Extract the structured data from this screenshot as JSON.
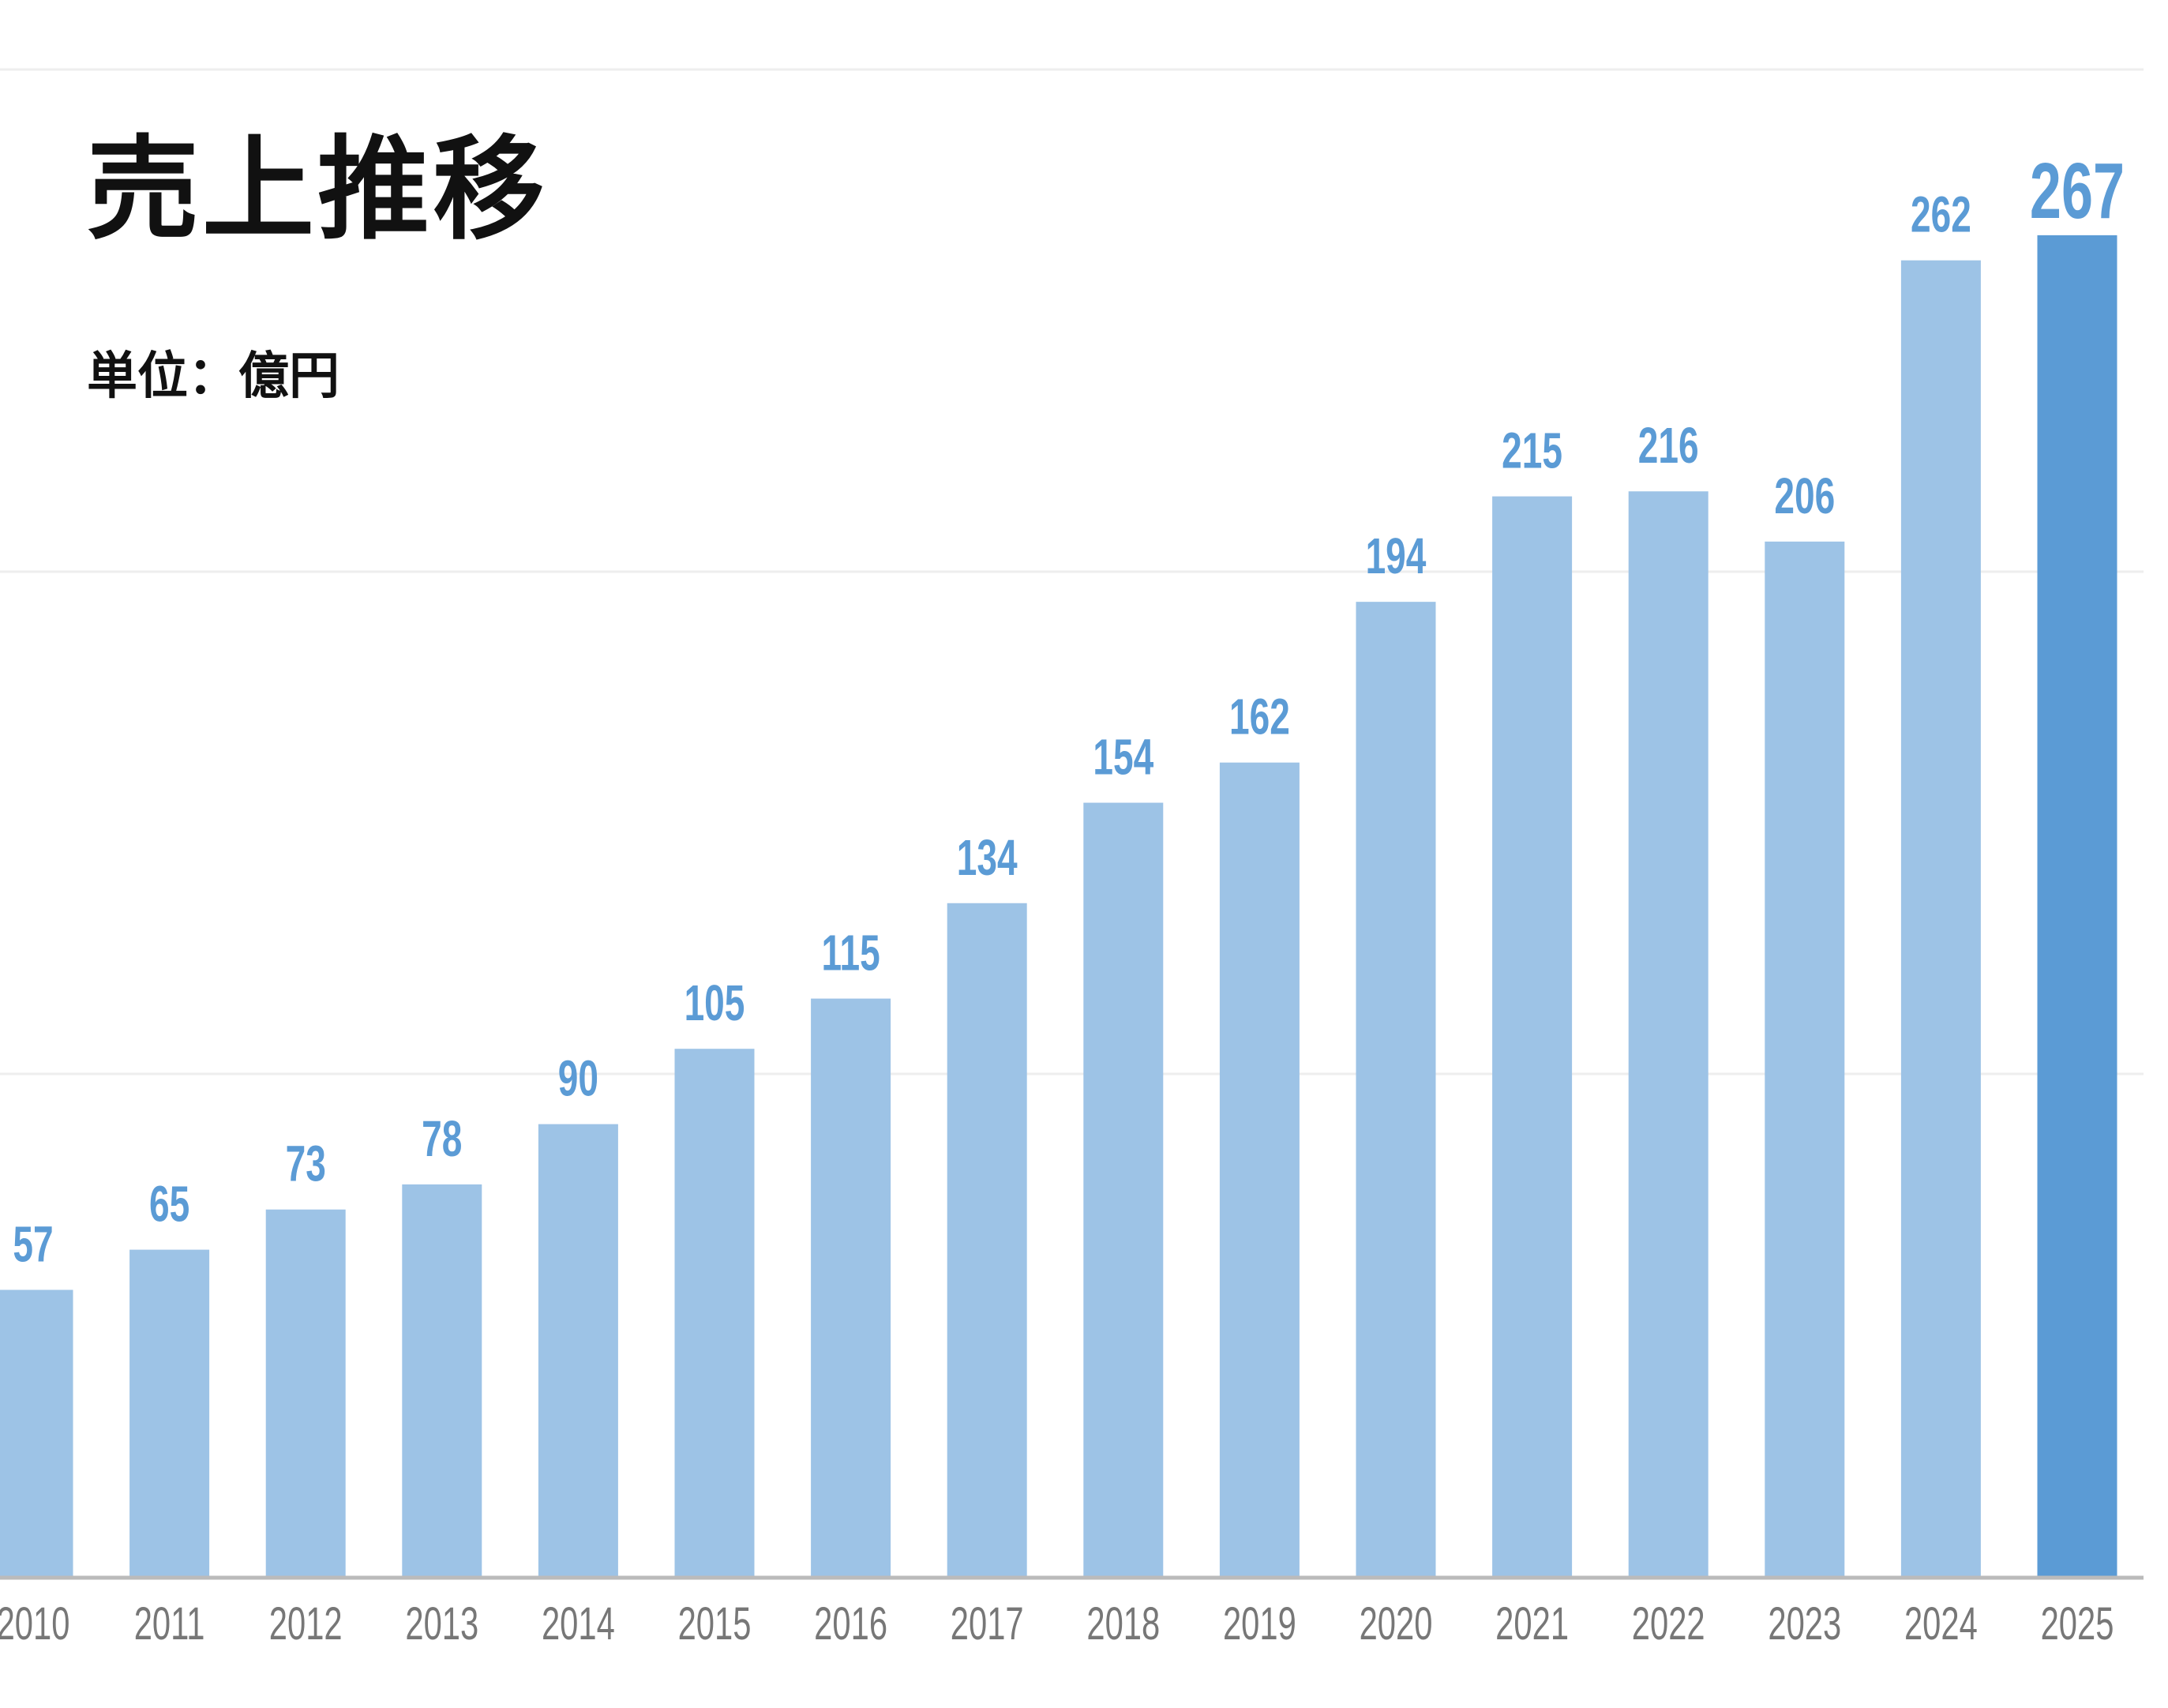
{
  "chart_data": {
    "type": "bar",
    "title": "売上推移",
    "unit_label": "単位：億円",
    "categories": [
      "2010",
      "2011",
      "2012",
      "2013",
      "2014",
      "2015",
      "2016",
      "2017",
      "2018",
      "2019",
      "2020",
      "2021",
      "2022",
      "2023",
      "2024",
      "2025"
    ],
    "values": [
      57,
      65,
      73,
      78,
      90,
      105,
      115,
      134,
      154,
      162,
      194,
      215,
      216,
      206,
      262,
      267
    ],
    "ylim": [
      0,
      300
    ],
    "gridlines": [
      100,
      200,
      300
    ],
    "grid": true,
    "highlight_category": "2025",
    "colors": {
      "bar": "#9dc3e6",
      "bar_highlight": "#5b9bd5",
      "data_label": "#5b9bd5",
      "tick_label": "#777777",
      "axis": "#bbbbbb",
      "grid": "#eeeeee"
    }
  }
}
